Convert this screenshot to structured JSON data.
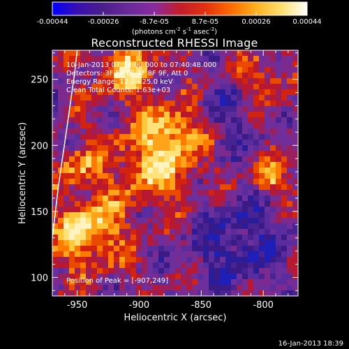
{
  "chart_data": {
    "type": "heatmap",
    "title": "Reconstructed RHESSI Image",
    "xlabel": "Heliocentric X (arcsec)",
    "ylabel": "Heliocentric Y (arcsec)",
    "xlim": [
      -970,
      -772
    ],
    "ylim": [
      86,
      272
    ],
    "xticks": [
      -950,
      -900,
      -850,
      -800
    ],
    "yticks": [
      100,
      150,
      200,
      250
    ],
    "colorbar": {
      "ticks": [
        "-0.00044",
        "-0.00026",
        "-8.7e-05",
        "8.7e-05",
        "0.00026",
        "0.00044"
      ],
      "range": [
        -0.00044,
        0.00044
      ],
      "unit_text": "(photons cm",
      "unit_exp1": "-2",
      "unit_mid": " s",
      "unit_exp2": "-1",
      "unit_end": " asec",
      "unit_exp3": "-2",
      "unit_close": ")",
      "colors": [
        "#0000ff",
        "#3a0fb0",
        "#4b1f8a",
        "#6a2a9a",
        "#8a2aa0",
        "#c21e2a",
        "#e23010",
        "#ff6a00",
        "#ffb020",
        "#ffe070",
        "#ffffff"
      ]
    },
    "annotations": {
      "time_range": "10-Jan-2013 07:39:00.000 to 07:40:48.000",
      "detectors": "Detectors: 3F 5F 6F 7F 8F 9F, Att 0",
      "energy_range": "Energy Range: 12.0 - 25.0 keV",
      "clean_counts": "Clean    Total Counts: 1.63e+03",
      "peak_position": "Position of Peak = [-907,249]"
    },
    "limb_curve": [
      [
        -970,
        130
      ],
      [
        -965,
        170
      ],
      [
        -958,
        215
      ],
      [
        -952,
        255
      ],
      [
        -950,
        272
      ]
    ]
  },
  "footer": {
    "timestamp": "16-Jan-2013 18:39"
  }
}
